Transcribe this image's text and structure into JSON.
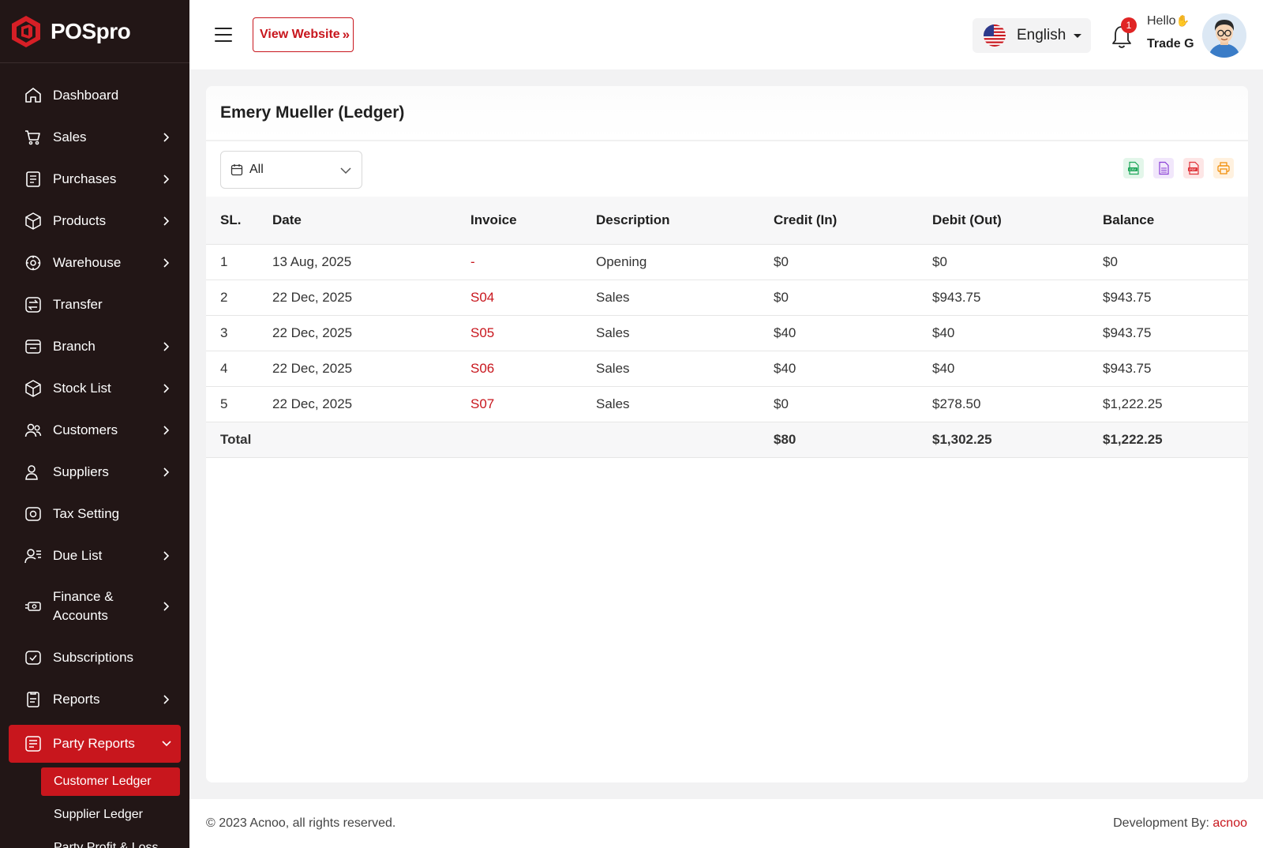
{
  "brand": {
    "name": "POSpro",
    "accent": "#c8161d",
    "sidebar_bg": "#221616"
  },
  "sidebar": {
    "items": [
      {
        "label": "Dashboard",
        "icon": "home-icon",
        "has_chevron": false
      },
      {
        "label": "Sales",
        "icon": "cart-icon",
        "has_chevron": true
      },
      {
        "label": "Purchases",
        "icon": "receipt-icon",
        "has_chevron": true
      },
      {
        "label": "Products",
        "icon": "box-icon",
        "has_chevron": true
      },
      {
        "label": "Warehouse",
        "icon": "warehouse-icon",
        "has_chevron": true
      },
      {
        "label": "Transfer",
        "icon": "transfer-icon",
        "has_chevron": false
      },
      {
        "label": "Branch",
        "icon": "branch-icon",
        "has_chevron": true
      },
      {
        "label": "Stock List",
        "icon": "stock-icon",
        "has_chevron": true
      },
      {
        "label": "Customers",
        "icon": "customers-icon",
        "has_chevron": true
      },
      {
        "label": "Suppliers",
        "icon": "suppliers-icon",
        "has_chevron": true
      },
      {
        "label": "Tax Setting",
        "icon": "tax-icon",
        "has_chevron": false
      },
      {
        "label": "Due List",
        "icon": "due-list-icon",
        "has_chevron": true
      },
      {
        "label": "Finance & Accounts",
        "icon": "finance-icon",
        "has_chevron": true
      },
      {
        "label": "Subscriptions",
        "icon": "subscription-icon",
        "has_chevron": false
      },
      {
        "label": "Reports",
        "icon": "reports-icon",
        "has_chevron": true
      },
      {
        "label": "Party Reports",
        "icon": "party-reports-icon",
        "has_chevron": true,
        "active": true
      }
    ],
    "submenu": [
      {
        "label": "Customer Ledger",
        "active": true
      },
      {
        "label": "Supplier Ledger",
        "active": false
      },
      {
        "label": "Party Profit & Loss",
        "active": false
      }
    ]
  },
  "header": {
    "view_website_label": "View Website",
    "language": "English",
    "notification_count": "1",
    "greeting": "Hello",
    "user_name": "Trade G"
  },
  "ledger": {
    "title": "Emery Mueller (Ledger)",
    "filter_value": "All",
    "export_icons": [
      "csv-icon",
      "excel-icon",
      "pdf-icon",
      "print-icon"
    ],
    "columns": [
      "SL.",
      "Date",
      "Invoice",
      "Description",
      "Credit (In)",
      "Debit (Out)",
      "Balance"
    ],
    "rows": [
      {
        "sl": "1",
        "date": "13 Aug, 2025",
        "invoice": "-",
        "description": "Opening",
        "credit": "$0",
        "debit": "$0",
        "balance": "$0"
      },
      {
        "sl": "2",
        "date": "22 Dec, 2025",
        "invoice": "S04",
        "description": "Sales",
        "credit": "$0",
        "debit": "$943.75",
        "balance": "$943.75"
      },
      {
        "sl": "3",
        "date": "22 Dec, 2025",
        "invoice": "S05",
        "description": "Sales",
        "credit": "$40",
        "debit": "$40",
        "balance": "$943.75"
      },
      {
        "sl": "4",
        "date": "22 Dec, 2025",
        "invoice": "S06",
        "description": "Sales",
        "credit": "$40",
        "debit": "$40",
        "balance": "$943.75"
      },
      {
        "sl": "5",
        "date": "22 Dec, 2025",
        "invoice": "S07",
        "description": "Sales",
        "credit": "$0",
        "debit": "$278.50",
        "balance": "$1,222.25"
      }
    ],
    "total": {
      "label": "Total",
      "credit": "$80",
      "debit": "$1,302.25",
      "balance": "$1,222.25"
    }
  },
  "footer": {
    "copyright": "© 2023 Acnoo, all rights reserved.",
    "dev_prefix": "Development By:",
    "dev_name": "acnoo"
  }
}
